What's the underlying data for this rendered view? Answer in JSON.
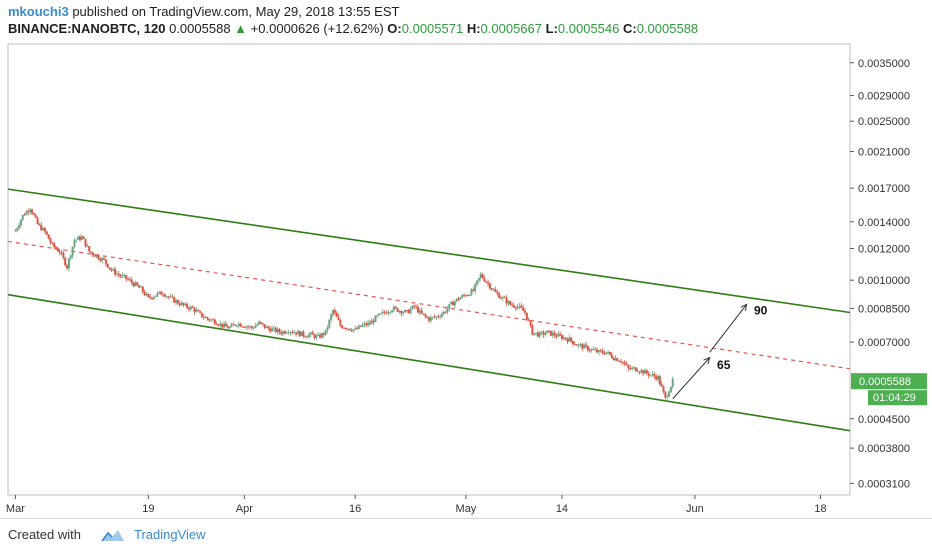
{
  "header": {
    "author": "mkouchi3",
    "published_text": "published on TradingView.com, May 29, 2018 13:55 EST",
    "symbol": "BINANCE:NANOBTC, 120",
    "last_price": "0.0005588",
    "change_arrow": "▲",
    "change": "+0.0000626 (+12.62%)",
    "o_label": "O:",
    "o_value": "0.0005571",
    "h_label": "H:",
    "h_value": "0.0005667",
    "l_label": "L:",
    "l_value": "0.0005546",
    "c_label": "C:",
    "c_value": "0.0005588"
  },
  "footer": {
    "created_with": "Created with",
    "brand": "TradingView",
    "logo_icon": "tradingview-cloud-icon"
  },
  "chart_data": {
    "type": "candlestick",
    "symbol": "BINANCE:NANOBTC",
    "interval": "120",
    "y_scale": "log",
    "ylim": [
      0.00029,
      0.0039
    ],
    "y_ticks": [
      "0.0035000",
      "0.0029000",
      "0.0025000",
      "0.0021000",
      "0.0017000",
      "0.0014000",
      "0.0012000",
      "0.0010000",
      "0.0008500",
      "0.0007000",
      "0.0005588",
      "0.0004500",
      "0.0003800",
      "0.0003100"
    ],
    "x_ticks": [
      "Mar",
      "19",
      "Apr",
      "16",
      "May",
      "14",
      "Jun",
      "18"
    ],
    "price_label": "0.0005588",
    "countdown_label": "01:04:29",
    "colors": {
      "up": "#6ba583",
      "down": "#d75442",
      "channel": "#2e7d12",
      "midline": "#e8554f",
      "price_tag": "#4caf50",
      "arrow": "#333333",
      "grid": "#d0d0d0"
    },
    "price_path": [
      [
        "2018-03-01",
        0.00133
      ],
      [
        "2018-03-02",
        0.00145
      ],
      [
        "2018-03-03",
        0.00152
      ],
      [
        "2018-03-04",
        0.00138
      ],
      [
        "2018-03-05",
        0.00132
      ],
      [
        "2018-03-06",
        0.00122
      ],
      [
        "2018-03-07",
        0.00118
      ],
      [
        "2018-03-08",
        0.00108
      ],
      [
        "2018-03-09",
        0.00126
      ],
      [
        "2018-03-10",
        0.00128
      ],
      [
        "2018-03-11",
        0.00118
      ],
      [
        "2018-03-12",
        0.00115
      ],
      [
        "2018-03-13",
        0.00112
      ],
      [
        "2018-03-14",
        0.00106
      ],
      [
        "2018-03-15",
        0.00103
      ],
      [
        "2018-03-16",
        0.00101
      ],
      [
        "2018-03-17",
        0.00098
      ],
      [
        "2018-03-18",
        0.00095
      ],
      [
        "2018-03-19",
        0.0009
      ],
      [
        "2018-03-20",
        0.00092
      ],
      [
        "2018-03-21",
        0.00093
      ],
      [
        "2018-03-22",
        0.0009
      ],
      [
        "2018-03-23",
        0.00088
      ],
      [
        "2018-03-24",
        0.00086
      ],
      [
        "2018-03-25",
        0.00085
      ],
      [
        "2018-03-26",
        0.00082
      ],
      [
        "2018-03-27",
        0.0008
      ],
      [
        "2018-03-28",
        0.00079
      ],
      [
        "2018-03-29",
        0.00077
      ],
      [
        "2018-03-30",
        0.00076
      ],
      [
        "2018-03-31",
        0.00078
      ],
      [
        "2018-04-01",
        0.00077
      ],
      [
        "2018-04-02",
        0.00076
      ],
      [
        "2018-04-03",
        0.00078
      ],
      [
        "2018-04-04",
        0.00076
      ],
      [
        "2018-04-05",
        0.00075
      ],
      [
        "2018-04-06",
        0.00074
      ],
      [
        "2018-04-07",
        0.00075
      ],
      [
        "2018-04-08",
        0.00074
      ],
      [
        "2018-04-09",
        0.00073
      ],
      [
        "2018-04-10",
        0.00073
      ],
      [
        "2018-04-11",
        0.00072
      ],
      [
        "2018-04-12",
        0.00074
      ],
      [
        "2018-04-13",
        0.00084
      ],
      [
        "2018-04-14",
        0.00077
      ],
      [
        "2018-04-15",
        0.00076
      ],
      [
        "2018-04-16",
        0.00075
      ],
      [
        "2018-04-17",
        0.00077
      ],
      [
        "2018-04-18",
        0.00078
      ],
      [
        "2018-04-19",
        0.00081
      ],
      [
        "2018-04-20",
        0.00083
      ],
      [
        "2018-04-21",
        0.00085
      ],
      [
        "2018-04-22",
        0.00084
      ],
      [
        "2018-04-23",
        0.00083
      ],
      [
        "2018-04-24",
        0.00086
      ],
      [
        "2018-04-25",
        0.00082
      ],
      [
        "2018-04-26",
        0.0008
      ],
      [
        "2018-04-27",
        0.00081
      ],
      [
        "2018-04-28",
        0.00083
      ],
      [
        "2018-04-29",
        0.00087
      ],
      [
        "2018-04-30",
        0.0009
      ],
      [
        "2018-05-01",
        0.00092
      ],
      [
        "2018-05-02",
        0.00094
      ],
      [
        "2018-05-03",
        0.00103
      ],
      [
        "2018-05-04",
        0.00098
      ],
      [
        "2018-05-05",
        0.00093
      ],
      [
        "2018-05-06",
        0.0009
      ],
      [
        "2018-05-07",
        0.00087
      ],
      [
        "2018-05-08",
        0.00086
      ],
      [
        "2018-05-09",
        0.00083
      ],
      [
        "2018-05-10",
        0.00074
      ],
      [
        "2018-05-11",
        0.00073
      ],
      [
        "2018-05-12",
        0.00074
      ],
      [
        "2018-05-13",
        0.00073
      ],
      [
        "2018-05-14",
        0.00072
      ],
      [
        "2018-05-15",
        0.00071
      ],
      [
        "2018-05-16",
        0.00069
      ],
      [
        "2018-05-17",
        0.00068
      ],
      [
        "2018-05-18",
        0.00067
      ],
      [
        "2018-05-19",
        0.00066
      ],
      [
        "2018-05-20",
        0.00066
      ],
      [
        "2018-05-21",
        0.00064
      ],
      [
        "2018-05-22",
        0.00063
      ],
      [
        "2018-05-23",
        0.0006
      ],
      [
        "2018-05-24",
        0.0006
      ],
      [
        "2018-05-25",
        0.00059
      ],
      [
        "2018-05-26",
        0.00058
      ],
      [
        "2018-05-27",
        0.00057
      ],
      [
        "2018-05-28",
        0.000505
      ],
      [
        "2018-05-29",
        0.000559
      ]
    ],
    "channel_lines": [
      {
        "name": "channel-upper",
        "from": [
          "2018-02-28",
          0.00169
        ],
        "to": [
          "2018-06-22",
          0.00083
        ]
      },
      {
        "name": "channel-middle",
        "from": [
          "2018-02-28",
          0.00125
        ],
        "to": [
          "2018-06-22",
          0.0006
        ]
      },
      {
        "name": "channel-lower",
        "from": [
          "2018-02-28",
          0.00092
        ],
        "to": [
          "2018-06-22",
          0.00042
        ]
      }
    ],
    "annotations": [
      {
        "label": "65",
        "arrow_from": [
          "2018-05-29",
          0.000505
        ],
        "arrow_to": [
          "2018-06-03",
          0.00064
        ],
        "text_at": [
          "2018-06-04",
          0.0006
        ]
      },
      {
        "label": "90",
        "arrow_from": [
          "2018-06-03",
          0.00066
        ],
        "arrow_to": [
          "2018-06-08",
          0.00087
        ],
        "text_at": [
          "2018-06-09",
          0.00082
        ]
      }
    ]
  }
}
